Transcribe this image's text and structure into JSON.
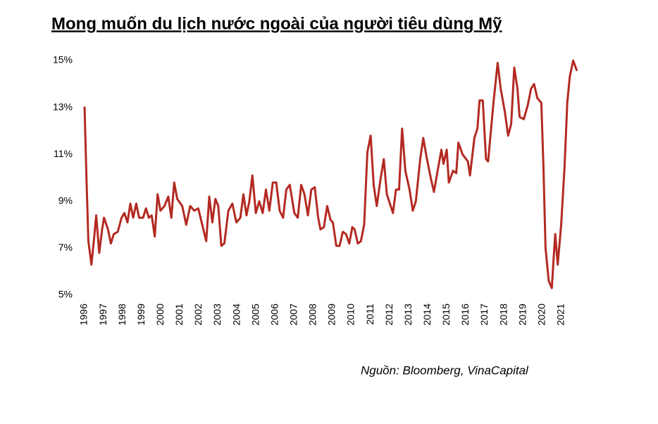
{
  "chart_data": {
    "type": "line",
    "title": "Mong muốn du lịch nước ngoài của người tiêu dùng Mỹ",
    "source": "Nguồn: Bloomberg, VinaCapital",
    "color": "#b32a22",
    "xlim": [
      1995.6,
      2022.2
    ],
    "xticks": [
      1996,
      1997,
      1998,
      1999,
      2000,
      2001,
      2002,
      2003,
      2004,
      2005,
      2006,
      2007,
      2008,
      2009,
      2010,
      2011,
      2012,
      2013,
      2014,
      2015,
      2016,
      2017,
      2018,
      2019,
      2020,
      2021
    ],
    "ylim": [
      5,
      15
    ],
    "yticks": [
      {
        "value": 5,
        "label": "5%"
      },
      {
        "value": 7,
        "label": "7%"
      },
      {
        "value": 9,
        "label": "9%"
      },
      {
        "value": 11,
        "label": "11%"
      },
      {
        "value": 13,
        "label": "13%"
      },
      {
        "value": 15,
        "label": "15%"
      }
    ],
    "x": [
      1996.0,
      1996.1,
      1996.2,
      1996.36,
      1996.51,
      1996.61,
      1996.77,
      1996.92,
      1997.02,
      1997.23,
      1997.38,
      1997.53,
      1997.74,
      1997.94,
      1998.09,
      1998.25,
      1998.4,
      1998.55,
      1998.71,
      1998.86,
      1999.07,
      1999.22,
      1999.37,
      1999.52,
      1999.68,
      1999.83,
      1999.98,
      2000.19,
      2000.39,
      2000.55,
      2000.7,
      2000.86,
      2001.12,
      2001.33,
      2001.54,
      2001.75,
      2001.96,
      2002.17,
      2002.38,
      2002.54,
      2002.7,
      2002.86,
      2003.01,
      2003.17,
      2003.33,
      2003.54,
      2003.75,
      2003.96,
      2004.17,
      2004.33,
      2004.49,
      2004.64,
      2004.8,
      2004.98,
      2005.16,
      2005.34,
      2005.51,
      2005.69,
      2005.87,
      2006.05,
      2006.23,
      2006.41,
      2006.58,
      2006.76,
      2007.0,
      2007.18,
      2007.36,
      2007.53,
      2007.71,
      2007.89,
      2008.07,
      2008.25,
      2008.37,
      2008.55,
      2008.72,
      2008.9,
      2009.02,
      2009.2,
      2009.37,
      2009.54,
      2009.71,
      2009.88,
      2010.04,
      2010.16,
      2010.33,
      2010.49,
      2010.66,
      2010.83,
      2011.0,
      2011.16,
      2011.32,
      2011.53,
      2011.69,
      2011.85,
      2012.01,
      2012.17,
      2012.33,
      2012.49,
      2012.65,
      2012.82,
      2013.04,
      2013.21,
      2013.37,
      2013.6,
      2013.76,
      2013.93,
      2014.15,
      2014.32,
      2014.49,
      2014.71,
      2014.82,
      2014.99,
      2015.1,
      2015.32,
      2015.49,
      2015.6,
      2015.82,
      2016.1,
      2016.21,
      2016.44,
      2016.6,
      2016.71,
      2016.88,
      2017.05,
      2017.16,
      2017.44,
      2017.66,
      2017.82,
      2018.04,
      2018.21,
      2018.37,
      2018.53,
      2018.7,
      2018.81,
      2019.03,
      2019.24,
      2019.41,
      2019.57,
      2019.74,
      2019.95,
      2020.06,
      2020.17,
      2020.34,
      2020.5,
      2020.59,
      2020.68,
      2020.81,
      2020.99,
      2021.17,
      2021.31,
      2021.44,
      2021.62,
      2021.8
    ],
    "values": [
      13.0,
      10.0,
      7.3,
      6.3,
      7.5,
      8.4,
      6.8,
      7.8,
      8.3,
      7.8,
      7.2,
      7.6,
      7.7,
      8.3,
      8.5,
      8.1,
      8.9,
      8.3,
      8.9,
      8.3,
      8.3,
      8.7,
      8.3,
      8.4,
      7.5,
      9.3,
      8.6,
      8.8,
      9.2,
      8.3,
      9.8,
      9.1,
      8.8,
      8.0,
      8.8,
      8.6,
      8.7,
      8.0,
      7.3,
      9.2,
      8.1,
      9.1,
      8.8,
      7.1,
      7.2,
      8.6,
      8.9,
      8.1,
      8.3,
      9.3,
      8.4,
      9.0,
      10.1,
      8.5,
      9.0,
      8.5,
      9.5,
      8.6,
      9.8,
      9.8,
      8.6,
      8.3,
      9.5,
      9.7,
      8.5,
      8.3,
      9.7,
      9.3,
      8.4,
      9.5,
      9.6,
      8.3,
      7.8,
      7.9,
      8.8,
      8.2,
      8.1,
      7.1,
      7.1,
      7.7,
      7.6,
      7.2,
      7.9,
      7.8,
      7.2,
      7.3,
      8.0,
      11.1,
      11.8,
      9.7,
      8.8,
      10.0,
      10.8,
      9.3,
      8.9,
      8.5,
      9.5,
      9.5,
      12.1,
      10.3,
      9.5,
      8.6,
      9.0,
      10.8,
      11.7,
      10.9,
      10.0,
      9.4,
      10.2,
      11.2,
      10.6,
      11.2,
      9.8,
      10.3,
      10.2,
      11.5,
      11.0,
      10.7,
      10.1,
      11.7,
      12.1,
      13.3,
      13.3,
      10.8,
      10.7,
      13.2,
      14.9,
      13.8,
      12.8,
      11.8,
      12.3,
      14.7,
      13.8,
      12.6,
      12.5,
      13.1,
      13.8,
      14.0,
      13.4,
      13.2,
      10.5,
      7.0,
      5.6,
      5.3,
      6.5,
      7.6,
      6.3,
      8.0,
      10.5,
      13.2,
      14.3,
      15.0,
      14.6
    ]
  }
}
